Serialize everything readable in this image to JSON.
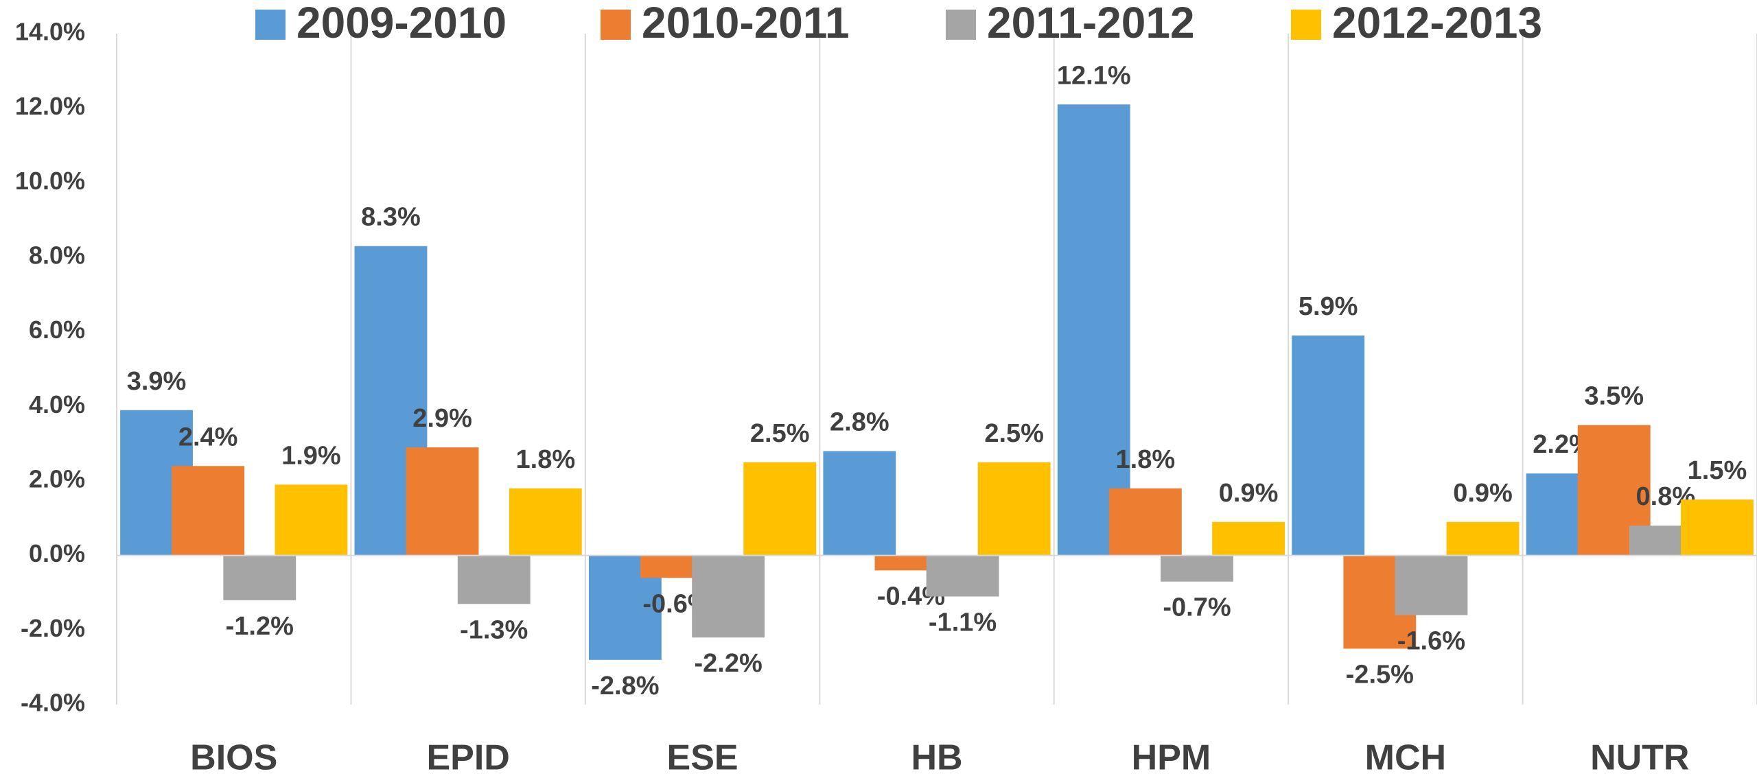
{
  "chart_data": {
    "type": "bar",
    "categories": [
      "BIOS",
      "EPID",
      "ESE",
      "HB",
      "HPM",
      "MCH",
      "NUTR"
    ],
    "series": [
      {
        "name": "2009-2010",
        "color": "#5b9bd5",
        "values": [
          3.9,
          8.3,
          -2.8,
          2.8,
          12.1,
          5.9,
          2.2
        ],
        "value_labels": [
          "3.9%",
          "8.3%",
          "-2.8%",
          "2.8%",
          "12.1%",
          "5.9%",
          "2.2%"
        ]
      },
      {
        "name": "2010-2011",
        "color": "#ed7d31",
        "values": [
          2.4,
          2.9,
          -0.6,
          -0.4,
          1.8,
          -2.5,
          3.5
        ],
        "value_labels": [
          "2.4%",
          "2.9%",
          "-0.6%",
          "-0.4%",
          "1.8%",
          "-2.5%",
          "3.5%"
        ]
      },
      {
        "name": "2011-2012",
        "color": "#a5a5a5",
        "values": [
          -1.2,
          -1.3,
          -2.2,
          -1.1,
          -0.7,
          -1.6,
          0.8
        ],
        "value_labels": [
          "-1.2%",
          "-1.3%",
          "-2.2%",
          "-1.1%",
          "-0.7%",
          "-1.6%",
          "0.8%"
        ]
      },
      {
        "name": "2012-2013",
        "color": "#ffc000",
        "values": [
          1.9,
          1.8,
          2.5,
          2.5,
          0.9,
          0.9,
          1.5
        ],
        "value_labels": [
          "1.9%",
          "1.8%",
          "2.5%",
          "2.5%",
          "0.9%",
          "0.9%",
          "1.5%"
        ]
      }
    ],
    "ylim": [
      -4,
      14
    ],
    "yticks": [
      {
        "value": -4,
        "label": "-4.0%"
      },
      {
        "value": -2,
        "label": "-2.0%"
      },
      {
        "value": 0,
        "label": "0.0%"
      },
      {
        "value": 2,
        "label": "2.0%"
      },
      {
        "value": 4,
        "label": "4.0%"
      },
      {
        "value": 6,
        "label": "6.0%"
      },
      {
        "value": 8,
        "label": "8.0%"
      },
      {
        "value": 10,
        "label": "10.0%"
      },
      {
        "value": 12,
        "label": "12.0%"
      },
      {
        "value": 14,
        "label": "14.0%"
      }
    ],
    "grid": false,
    "legend": "top"
  }
}
